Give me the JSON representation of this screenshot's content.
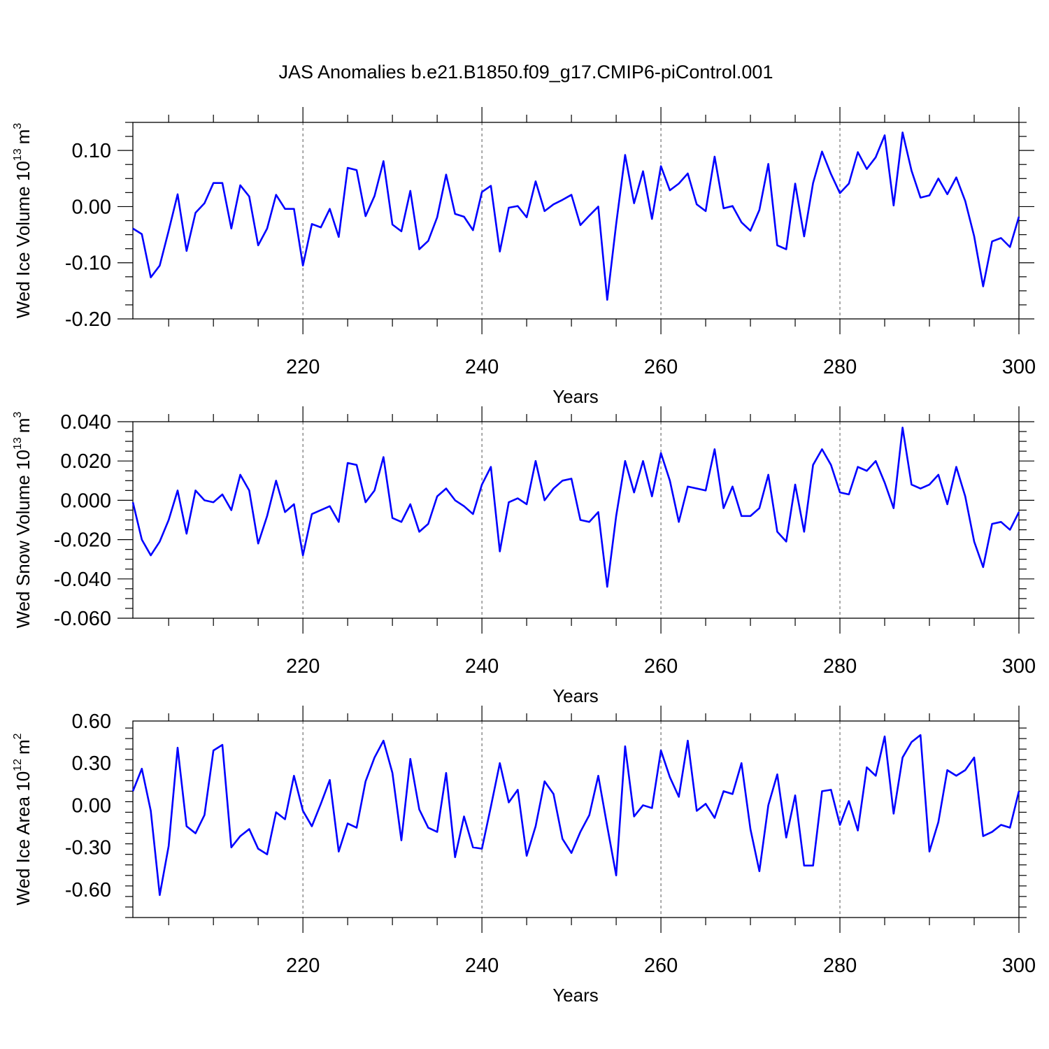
{
  "title": "JAS Anomalies b.e21.B1850.f09_g17.CMIP6-piControl.001",
  "chart_data": [
    {
      "type": "line",
      "ylabel": "Wed Ice Volume 10",
      "ylabel_exp": "13",
      "ylabel_unit": "m",
      "ylabel_unit_exp": "3",
      "xlabel": "Years",
      "xlim": [
        201,
        300
      ],
      "ylim": [
        -0.2,
        0.15
      ],
      "xticks": [
        220,
        240,
        260,
        280,
        300
      ],
      "xtick_labels": [
        "220",
        "240",
        "260",
        "280",
        "300"
      ],
      "yticks": [
        -0.2,
        -0.1,
        0.0,
        0.1
      ],
      "ytick_labels": [
        "-0.20",
        "-0.10",
        "0.00",
        "0.10"
      ],
      "grid_x": [
        220,
        240,
        260,
        280
      ],
      "series": [
        {
          "color": "#0000ff",
          "x_start": 201,
          "values": [
            -0.039,
            -0.049,
            -0.126,
            -0.105,
            -0.043,
            0.022,
            -0.079,
            -0.011,
            0.006,
            0.042,
            0.042,
            -0.039,
            0.038,
            0.018,
            -0.069,
            -0.039,
            0.021,
            -0.004,
            -0.004,
            -0.105,
            -0.031,
            -0.037,
            -0.004,
            -0.054,
            0.069,
            0.065,
            -0.017,
            0.019,
            0.081,
            -0.032,
            -0.044,
            0.028,
            -0.076,
            -0.061,
            -0.019,
            0.057,
            -0.013,
            -0.018,
            -0.042,
            0.026,
            0.037,
            -0.08,
            -0.002,
            0.001,
            -0.019,
            0.045,
            -0.008,
            0.004,
            0.012,
            0.021,
            -0.033,
            -0.016,
            0.0,
            -0.166,
            -0.031,
            0.092,
            0.006,
            0.063,
            -0.022,
            0.072,
            0.029,
            0.041,
            0.059,
            0.004,
            -0.008,
            0.089,
            -0.003,
            0.001,
            -0.028,
            -0.043,
            -0.006,
            0.076,
            -0.069,
            -0.076,
            0.041,
            -0.053,
            0.042,
            0.098,
            0.058,
            0.024,
            0.041,
            0.097,
            0.067,
            0.088,
            0.127,
            0.002,
            0.132,
            0.064,
            0.016,
            0.02,
            0.05,
            0.022,
            0.052,
            0.01,
            -0.053,
            -0.142,
            -0.062,
            -0.056,
            -0.072,
            -0.018
          ]
        }
      ]
    },
    {
      "type": "line",
      "ylabel": "Wed Snow Volume 10",
      "ylabel_exp": "13",
      "ylabel_unit": "m",
      "ylabel_unit_exp": "3",
      "xlabel": "Years",
      "xlim": [
        201,
        300
      ],
      "ylim": [
        -0.06,
        0.04
      ],
      "xticks": [
        220,
        240,
        260,
        280,
        300
      ],
      "xtick_labels": [
        "220",
        "240",
        "260",
        "280",
        "300"
      ],
      "yticks": [
        -0.06,
        -0.04,
        -0.02,
        0.0,
        0.02,
        0.04
      ],
      "ytick_labels": [
        "-0.060",
        "-0.040",
        "-0.020",
        "0.000",
        "0.020",
        "0.040"
      ],
      "grid_x": [
        220,
        240,
        260,
        280
      ],
      "series": [
        {
          "color": "#0000ff",
          "x_start": 201,
          "values": [
            -0.001,
            -0.02,
            -0.028,
            -0.021,
            -0.01,
            0.005,
            -0.017,
            0.005,
            0.0,
            -0.001,
            0.003,
            -0.005,
            0.013,
            0.005,
            -0.022,
            -0.008,
            0.01,
            -0.006,
            -0.002,
            -0.028,
            -0.007,
            -0.005,
            -0.003,
            -0.011,
            0.019,
            0.018,
            -0.001,
            0.005,
            0.022,
            -0.009,
            -0.011,
            -0.002,
            -0.016,
            -0.012,
            0.002,
            0.006,
            0.0,
            -0.003,
            -0.007,
            0.008,
            0.017,
            -0.026,
            -0.001,
            0.001,
            -0.002,
            0.02,
            0.0,
            0.006,
            0.01,
            0.011,
            -0.01,
            -0.011,
            -0.006,
            -0.044,
            -0.008,
            0.02,
            0.004,
            0.02,
            0.002,
            0.024,
            0.01,
            -0.011,
            0.007,
            0.006,
            0.005,
            0.026,
            -0.004,
            0.007,
            -0.008,
            -0.008,
            -0.004,
            0.013,
            -0.016,
            -0.021,
            0.008,
            -0.016,
            0.018,
            0.026,
            0.018,
            0.004,
            0.003,
            0.017,
            0.015,
            0.02,
            0.009,
            -0.004,
            0.037,
            0.008,
            0.006,
            0.008,
            0.013,
            -0.002,
            0.017,
            0.002,
            -0.021,
            -0.034,
            -0.012,
            -0.011,
            -0.015,
            -0.006
          ]
        }
      ]
    },
    {
      "type": "line",
      "ylabel": "Wed Ice Area 10",
      "ylabel_exp": "12",
      "ylabel_unit": "m",
      "ylabel_unit_exp": "2",
      "xlabel": "Years",
      "xlim": [
        201,
        300
      ],
      "ylim": [
        -0.8,
        0.6
      ],
      "xticks": [
        220,
        240,
        260,
        280,
        300
      ],
      "xtick_labels": [
        "220",
        "240",
        "260",
        "280",
        "300"
      ],
      "yticks": [
        -0.6,
        -0.3,
        0.0,
        0.3,
        0.6
      ],
      "ytick_labels": [
        "-0.60",
        "-0.30",
        "0.00",
        "0.30",
        "0.60"
      ],
      "grid_x": [
        220,
        240,
        260,
        280
      ],
      "series": [
        {
          "color": "#0000ff",
          "x_start": 201,
          "values": [
            0.1,
            0.26,
            -0.04,
            -0.64,
            -0.29,
            0.41,
            -0.15,
            -0.2,
            -0.07,
            0.39,
            0.43,
            -0.3,
            -0.22,
            -0.17,
            -0.31,
            -0.35,
            -0.05,
            -0.1,
            0.21,
            -0.04,
            -0.15,
            0.01,
            0.18,
            -0.33,
            -0.13,
            -0.16,
            0.17,
            0.34,
            0.46,
            0.23,
            -0.25,
            0.33,
            -0.03,
            -0.16,
            -0.19,
            0.23,
            -0.37,
            -0.08,
            -0.3,
            -0.31,
            -0.01,
            0.3,
            0.02,
            0.11,
            -0.36,
            -0.15,
            0.17,
            0.08,
            -0.24,
            -0.34,
            -0.19,
            -0.07,
            0.21,
            -0.15,
            -0.5,
            0.42,
            -0.08,
            0.0,
            -0.02,
            0.39,
            0.2,
            0.06,
            0.46,
            -0.04,
            0.01,
            -0.09,
            0.1,
            0.08,
            0.3,
            -0.17,
            -0.47,
            0.0,
            0.22,
            -0.23,
            0.07,
            -0.43,
            -0.43,
            0.1,
            0.11,
            -0.14,
            0.03,
            -0.18,
            0.27,
            0.21,
            0.49,
            -0.06,
            0.34,
            0.45,
            0.5,
            -0.33,
            -0.12,
            0.25,
            0.21,
            0.25,
            0.34,
            -0.22,
            -0.19,
            -0.14,
            -0.16,
            0.1
          ]
        }
      ]
    }
  ]
}
